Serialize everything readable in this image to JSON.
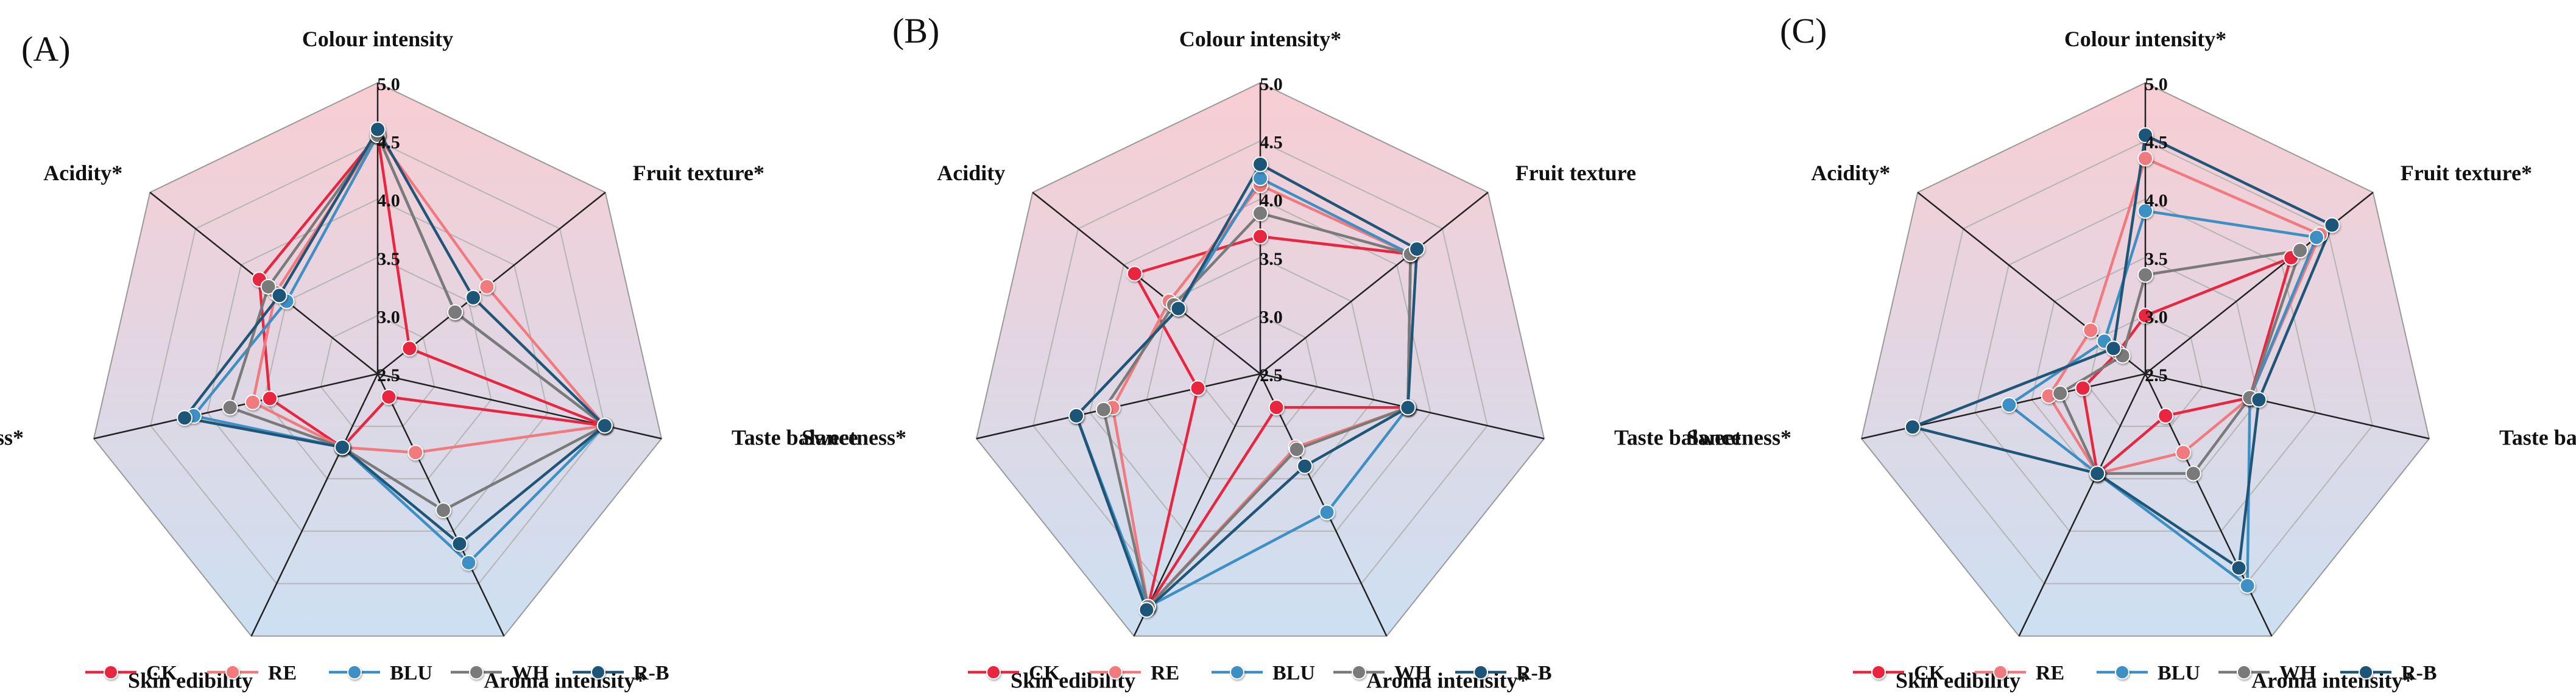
{
  "colors": {
    "CK": "#e8263f",
    "RE": "#f07a7d",
    "BLU": "#3d8fc4",
    "WH": "#7a7a7a",
    "R-B": "#1f5577",
    "bg_top": "#f8cdd3",
    "bg_bottom": "#cce0f2"
  },
  "legend": [
    "CK",
    "RE",
    "BLU",
    "WH",
    "R-B"
  ],
  "chart_data": [
    {
      "type": "radar",
      "panel_label": "(A)",
      "axes": [
        "Colour intensity",
        "Fruit texture*",
        "Taste balance",
        "Aroma intensity*",
        "Skin edibility",
        "Sweetness*",
        "Acidity*"
      ],
      "rlim": [
        2.5,
        5.0
      ],
      "ticks": [
        "2.5",
        "3.0",
        "3.5",
        "4.0",
        "4.5",
        "5.0"
      ],
      "series": [
        {
          "name": "CK",
          "values": [
            4.55,
            2.85,
            4.5,
            2.72,
            3.2,
            3.45,
            3.8
          ]
        },
        {
          "name": "RE",
          "values": [
            4.55,
            3.7,
            4.5,
            3.25,
            3.2,
            3.6,
            3.62
          ]
        },
        {
          "name": "BLU",
          "values": [
            4.55,
            3.35,
            4.5,
            4.3,
            3.2,
            4.12,
            3.5
          ]
        },
        {
          "name": "WH",
          "values": [
            4.55,
            3.35,
            4.5,
            3.8,
            3.2,
            3.8,
            3.7
          ]
        },
        {
          "name": "R-B",
          "values": [
            4.6,
            3.55,
            4.5,
            4.12,
            3.2,
            4.2,
            3.58
          ]
        }
      ]
    },
    {
      "type": "radar",
      "panel_label": "(B)",
      "axes": [
        "Colour intensity*",
        "Fruit texture",
        "Taste balance",
        "Aroma intensity*",
        "Skin edibility",
        "Sweetness*",
        "Acidity"
      ],
      "rlim": [
        2.5,
        5.0
      ],
      "ticks": [
        "2.5",
        "3.0",
        "3.5",
        "4.0",
        "4.5",
        "5.0"
      ],
      "series": [
        {
          "name": "CK",
          "values": [
            3.68,
            4.15,
            3.8,
            2.82,
            4.72,
            3.05,
            3.88
          ]
        },
        {
          "name": "RE",
          "values": [
            4.12,
            4.15,
            3.8,
            3.2,
            4.72,
            3.8,
            3.5
          ]
        },
        {
          "name": "BLU",
          "values": [
            4.18,
            4.15,
            3.8,
            3.82,
            4.72,
            4.12,
            3.4
          ]
        },
        {
          "name": "WH",
          "values": [
            3.88,
            4.15,
            3.8,
            3.22,
            4.72,
            3.88,
            3.45
          ]
        },
        {
          "name": "R-B",
          "values": [
            4.3,
            4.22,
            3.8,
            3.38,
            4.75,
            4.12,
            3.4
          ]
        }
      ]
    },
    {
      "type": "radar",
      "panel_label": "(C)",
      "axes": [
        "Colour intensity*",
        "Fruit texture*",
        "Taste balance",
        "Aroma intensity*",
        "Skin edibility",
        "Sweetness*",
        "Acidity*"
      ],
      "rlim": [
        2.5,
        5.0
      ],
      "ticks": [
        "2.5",
        "3.0",
        "3.5",
        "4.0",
        "4.5",
        "5.0"
      ],
      "series": [
        {
          "name": "CK",
          "values": [
            3.0,
            4.1,
            3.42,
            2.9,
            3.45,
            3.05,
            2.8
          ]
        },
        {
          "name": "RE",
          "values": [
            4.35,
            4.42,
            3.42,
            3.25,
            3.45,
            3.35,
            3.1
          ]
        },
        {
          "name": "BLU",
          "values": [
            3.9,
            4.38,
            3.42,
            4.52,
            3.45,
            3.7,
            2.95
          ]
        },
        {
          "name": "WH",
          "values": [
            3.35,
            4.2,
            3.42,
            3.45,
            3.45,
            3.25,
            2.75
          ]
        },
        {
          "name": "R-B",
          "values": [
            4.55,
            4.55,
            3.5,
            4.35,
            3.45,
            4.55,
            2.85
          ]
        }
      ]
    }
  ]
}
